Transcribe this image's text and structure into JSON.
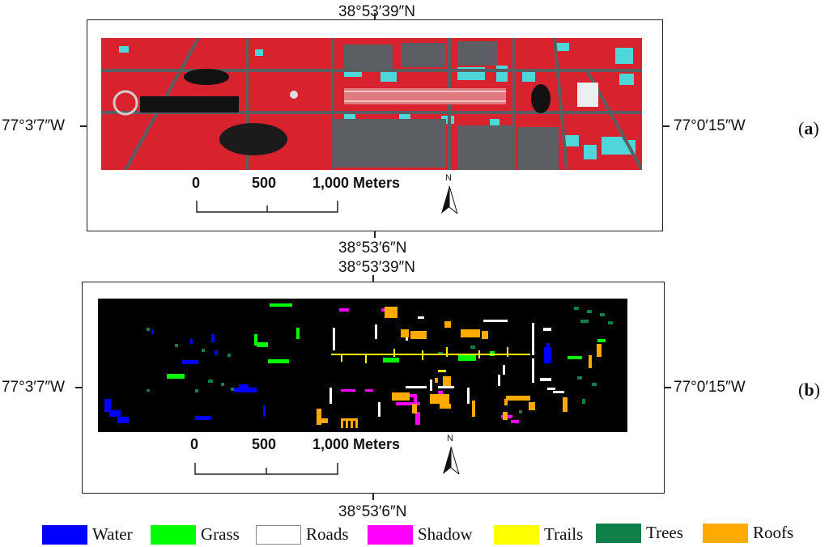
{
  "panel_a": {
    "tag": "a",
    "top_coord": "38°53′39″N",
    "bottom_coord": "38°53′6″N",
    "left_coord": "77°3′7″W",
    "right_coord": "77°0′15″W",
    "scale": {
      "zero": "0",
      "mid": "500",
      "max": "1,000 Meters"
    },
    "north_label": "N",
    "image_kind": "false-color (near-infrared) satellite image",
    "colors": {
      "vegetation": "#d8222e",
      "roads": "#555a5a",
      "water": "#1a1a1a",
      "roofs_cyan": "#4fd6d8"
    }
  },
  "panel_b": {
    "tag": "b",
    "top_coord": "38°53′39″N",
    "bottom_coord": "38°53′6″N",
    "left_coord": "77°3′7″W",
    "right_coord": "77°0′15″W",
    "scale": {
      "zero": "0",
      "mid": "500",
      "max": "1,000 Meters"
    },
    "north_label": "N",
    "background": "#000000"
  },
  "legend": [
    {
      "label": "Water",
      "color": "#0000ff"
    },
    {
      "label": "Grass",
      "color": "#00ff00"
    },
    {
      "label": "Roads",
      "color": "#ffffff"
    },
    {
      "label": "Shadow",
      "color": "#ff00ff"
    },
    {
      "label": "Trails",
      "color": "#ffff00"
    },
    {
      "label": "Trees",
      "color": "#10804a"
    },
    {
      "label": "Roofs",
      "color": "#ffaa00"
    }
  ]
}
